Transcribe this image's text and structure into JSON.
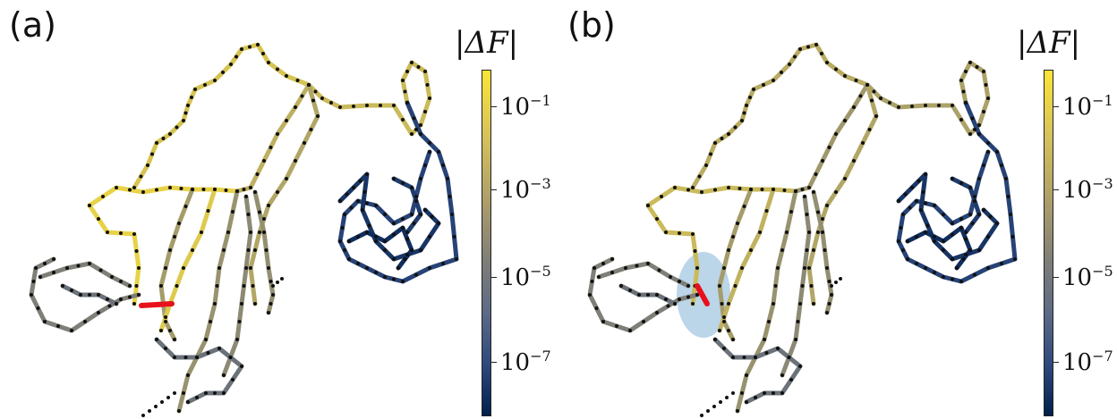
{
  "panels": [
    {
      "label": "(a)"
    },
    {
      "label": "(b)"
    }
  ],
  "colorbar": {
    "title": "|ΔF|",
    "ticks": [
      {
        "base": "10",
        "exp": "−1"
      },
      {
        "base": "10",
        "exp": "−3"
      },
      {
        "base": "10",
        "exp": "−5"
      },
      {
        "base": "10",
        "exp": "−7"
      }
    ],
    "scale": "log",
    "colormap": [
      "#00204c",
      "#2f4a7e",
      "#7f7f78",
      "#d8c45a",
      "#fce436"
    ]
  },
  "colors": {
    "highlight_edge": "#e8101c",
    "highlight_region": "#9ec3e0",
    "node": "#111111"
  }
}
